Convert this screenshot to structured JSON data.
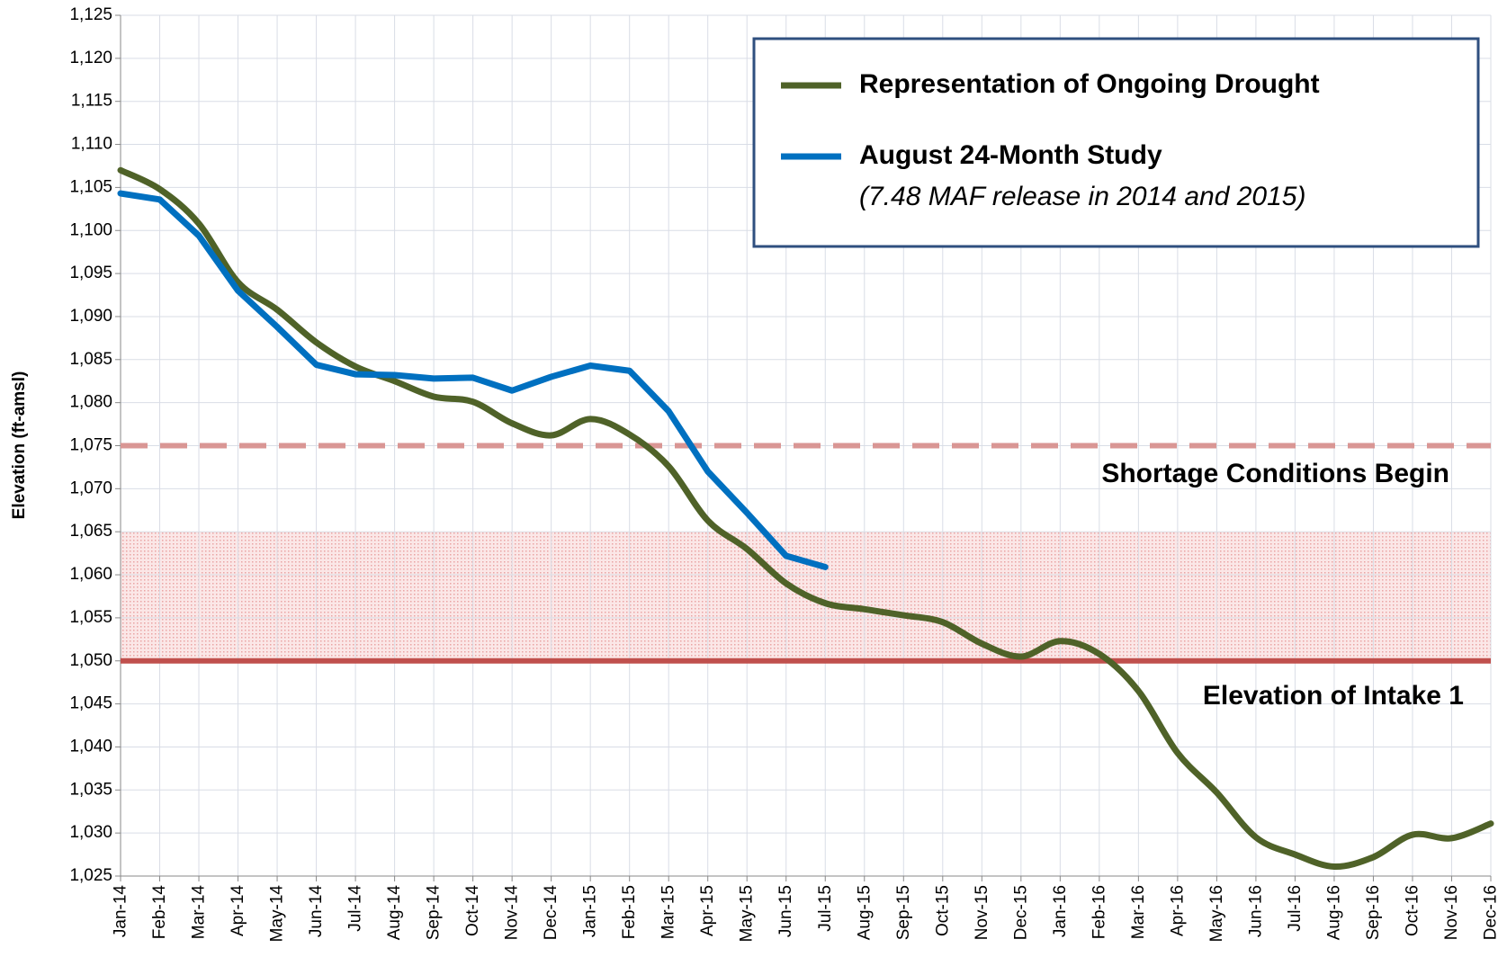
{
  "chart_data": {
    "type": "line",
    "y_label": "Elevation (ft-amsl)",
    "categories": [
      "Jan-14",
      "Feb-14",
      "Mar-14",
      "Apr-14",
      "May-14",
      "Jun-14",
      "Jul-14",
      "Aug-14",
      "Sep-14",
      "Oct-14",
      "Nov-14",
      "Dec-14",
      "Jan-15",
      "Feb-15",
      "Mar-15",
      "Apr-15",
      "May-15",
      "Jun-15",
      "Jul-15",
      "Aug-15",
      "Sep-15",
      "Oct-15",
      "Nov-15",
      "Dec-15",
      "Jan-16",
      "Feb-16",
      "Mar-16",
      "Apr-16",
      "May-16",
      "Jun-16",
      "Jul-16",
      "Aug-16",
      "Sep-16",
      "Oct-16",
      "Nov-16",
      "Dec-16"
    ],
    "series": [
      {
        "name": "Representation of Ongoing Drought",
        "color": "#4f6228",
        "smooth": true,
        "values": [
          1107,
          1104.8,
          1100.8,
          1094,
          1090.8,
          1087,
          1084.2,
          1082.5,
          1080.7,
          1080.1,
          1077.6,
          1076.2,
          1078.1,
          1076.3,
          1072.6,
          1066.3,
          1063,
          1059,
          1056.7,
          1056,
          1055.3,
          1054.5,
          1052,
          1050.5,
          1052.3,
          1050.8,
          1046.5,
          1039.3,
          1034.7,
          1029.5,
          1027.5,
          1026.1,
          1027.2,
          1029.8,
          1029.4,
          1031.1
        ]
      },
      {
        "name": "August 24-Month Study",
        "note": "(7.48 MAF release in 2014 and 2015)",
        "color": "#0070c0",
        "smooth": false,
        "values": [
          1104.3,
          1103.6,
          1099.4,
          1093,
          1088.8,
          1084.4,
          1083.3,
          1083.2,
          1082.8,
          1082.9,
          1081.4,
          1083,
          1084.3,
          1083.7,
          1079,
          1072,
          1067.2,
          1062.2,
          1060.9,
          null,
          null,
          null,
          null,
          null,
          null,
          null,
          null,
          null,
          null,
          null,
          null,
          null,
          null,
          null,
          null,
          null
        ]
      }
    ],
    "reference_lines": [
      {
        "value": 1075,
        "style": "dashed",
        "color": "#d99694",
        "label": "Shortage Conditions Begin"
      },
      {
        "value": 1050,
        "style": "solid",
        "color": "#c0504d",
        "label": "Elevation of Intake 1"
      }
    ],
    "band": {
      "range": [
        1050,
        1065
      ],
      "color": "#f2c4c4"
    },
    "ylim": [
      1025,
      1125
    ],
    "yticks": [
      {
        "value": 1025,
        "label": "1,025"
      },
      {
        "value": 1030,
        "label": "1,030"
      },
      {
        "value": 1035,
        "label": "1,035"
      },
      {
        "value": 1040,
        "label": "1,040"
      },
      {
        "value": 1045,
        "label": "1,045"
      },
      {
        "value": 1050,
        "label": "1,050"
      },
      {
        "value": 1055,
        "label": "1,055"
      },
      {
        "value": 1060,
        "label": "1,060"
      },
      {
        "value": 1065,
        "label": "1,065"
      },
      {
        "value": 1070,
        "label": "1,070"
      },
      {
        "value": 1075,
        "label": "1,075"
      },
      {
        "value": 1080,
        "label": "1,080"
      },
      {
        "value": 1085,
        "label": "1,085"
      },
      {
        "value": 1090,
        "label": "1,090"
      },
      {
        "value": 1095,
        "label": "1,095"
      },
      {
        "value": 1100,
        "label": "1,100"
      },
      {
        "value": 1105,
        "label": "1,105"
      },
      {
        "value": 1110,
        "label": "1,110"
      },
      {
        "value": 1115,
        "label": "1,115"
      },
      {
        "value": 1120,
        "label": "1,120"
      },
      {
        "value": 1125,
        "label": "1,125"
      }
    ],
    "grid": true
  }
}
